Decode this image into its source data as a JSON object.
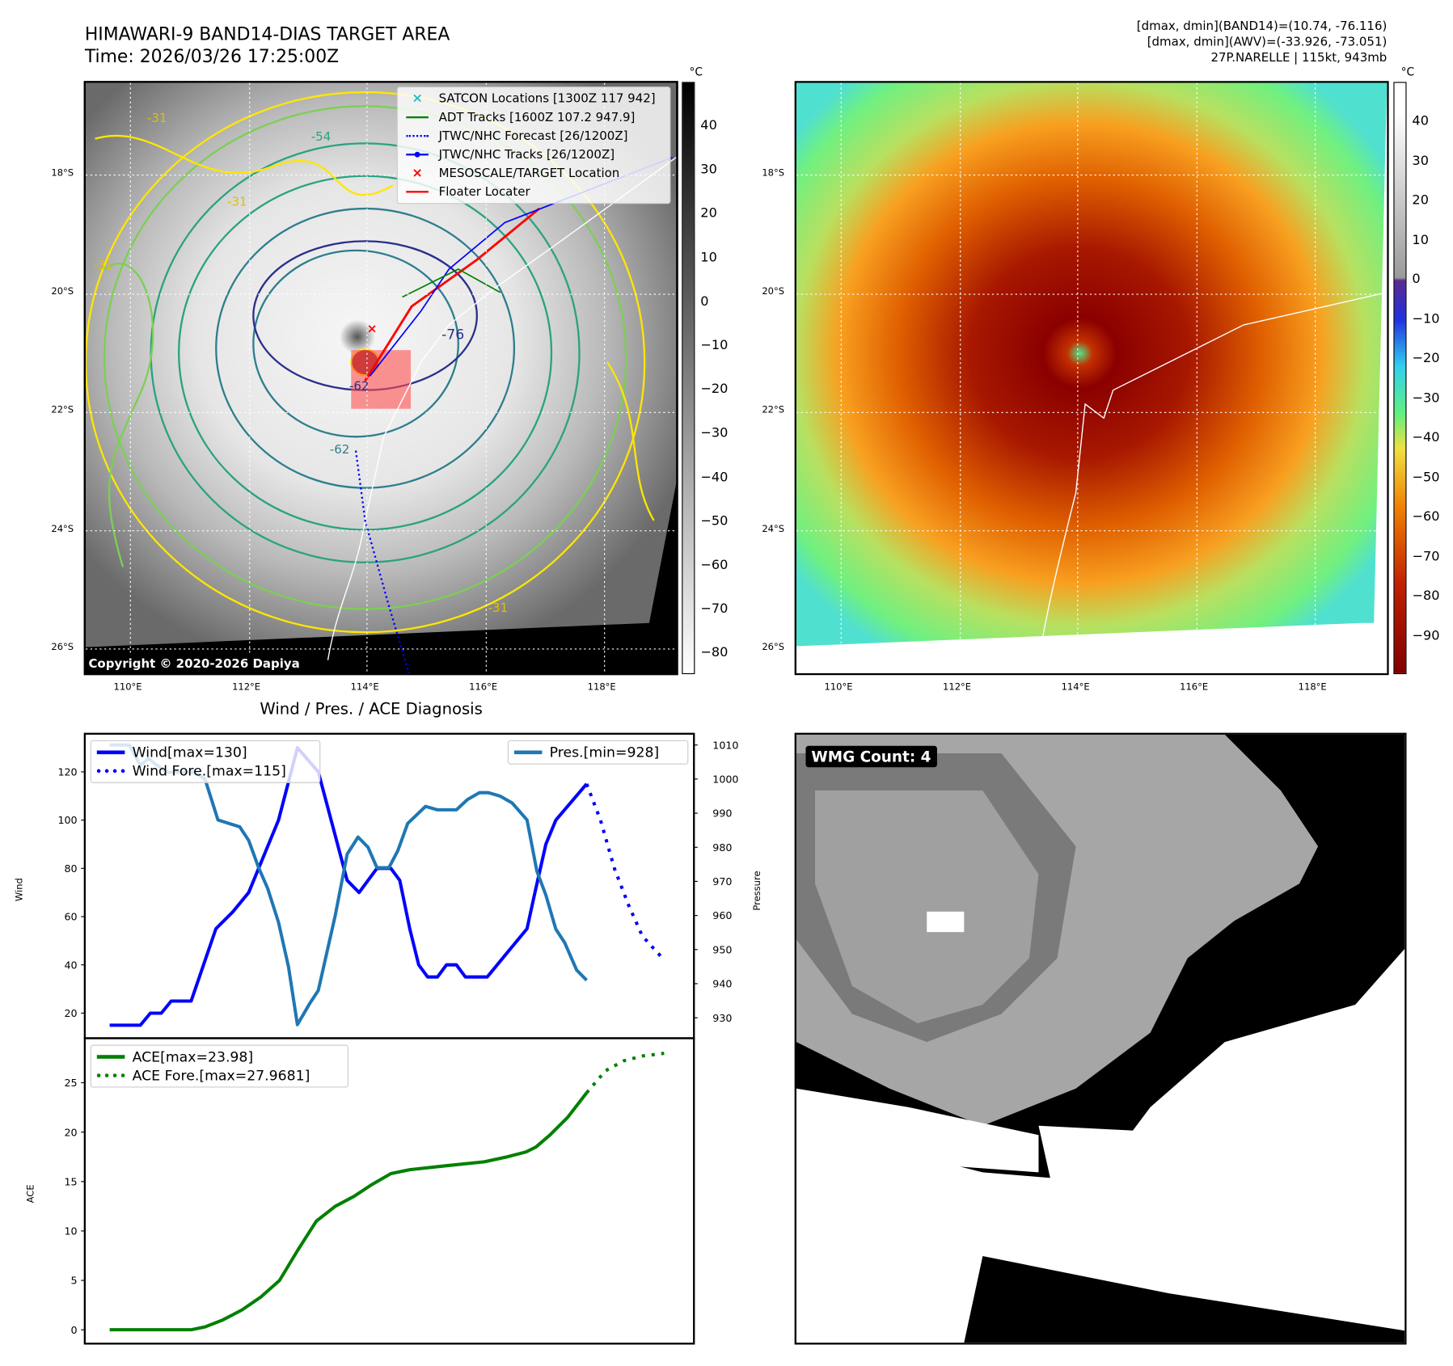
{
  "header": {
    "title": "HIMAWARI-9 BAND14-DIAS TARGET AREA",
    "time": "Time: 2026/03/26 17:25:00Z",
    "info_line1": "[dmax, dmin](BAND14)=(10.74, -76.116)",
    "info_line2": "[dmax, dmin](AWV)=(-33.926, -73.051)",
    "info_line3": "27P.NARELLE | 115kt, 943mb"
  },
  "maps": {
    "lat_labels": [
      "18°S",
      "20°S",
      "22°S",
      "24°S",
      "26°S"
    ],
    "lon_labels": [
      "110°E",
      "112°E",
      "114°E",
      "116°E",
      "118°E"
    ],
    "unit": "°C",
    "copyright": "Copyright © 2020-2026 Dapiya",
    "contour_labels": [
      "-31",
      "-54",
      "-31",
      "-31",
      "-76",
      "-62",
      "-62",
      "-31"
    ],
    "legend": [
      {
        "label": "SATCON Locations [1300Z 117 942]",
        "color": "#17becf",
        "icon": "x-marker-icon"
      },
      {
        "label": "ADT Tracks [1600Z 107.2 947.9]",
        "color": "#008000",
        "icon": "solid-line-icon"
      },
      {
        "label": "JTWC/NHC Forecast [26/1200Z]",
        "color": "#0000ff",
        "icon": "dotted-line-icon"
      },
      {
        "label": "JTWC/NHC Tracks [26/1200Z]",
        "color": "#0000ff",
        "icon": "line-dot-icon"
      },
      {
        "label": "MESOSCALE/TARGET Location",
        "color": "#ff0000",
        "icon": "x-marker-icon"
      },
      {
        "label": "Floater Locater",
        "color": "#ff0000",
        "icon": "solid-line-icon"
      }
    ],
    "left_colorbar_ticks": [
      "40",
      "30",
      "20",
      "10",
      "0",
      "−10",
      "−20",
      "−30",
      "−40",
      "−50",
      "−60",
      "−70",
      "−80"
    ],
    "right_colorbar_ticks": [
      "40",
      "30",
      "20",
      "10",
      "0",
      "−10",
      "−20",
      "−30",
      "−40",
      "−50",
      "−60",
      "−70",
      "−80",
      "−90"
    ]
  },
  "wmg": {
    "label": "WMG Count: 4"
  },
  "chart_data": [
    {
      "type": "line",
      "title": "Wind / Pres. / ACE Diagnosis",
      "ylabel": "Wind",
      "ylabel_right": "Pressure",
      "xlim": [
        -2.5,
        58.8
      ],
      "ylim": [
        9.6,
        135.8
      ],
      "ylim_right": [
        924,
        1013.3
      ],
      "yticks": [
        20,
        40,
        60,
        80,
        100,
        120
      ],
      "yticks_right": [
        930,
        940,
        950,
        960,
        970,
        980,
        990,
        1000,
        1010
      ],
      "series": [
        {
          "name": "Wind[max=130]",
          "axis": "left",
          "color": "#0000ff",
          "style": "solid",
          "x": [
            0,
            3.1,
            4.1,
            5.2,
            6.2,
            8.2,
            10.7,
            12.4,
            14,
            15.5,
            17,
            18.9,
            21,
            23.9,
            25.1,
            26.9,
            28.3,
            29.2,
            30.2,
            31.1,
            32,
            33,
            33.9,
            34.9,
            35.8,
            38,
            40,
            42,
            42.8,
            43.9,
            44.9,
            48
          ],
          "y": [
            15,
            15,
            20,
            20,
            25,
            25,
            55,
            62,
            70,
            85,
            100,
            130,
            120,
            75,
            70,
            80,
            80,
            75,
            55,
            40,
            35,
            35,
            40,
            40,
            35,
            35,
            45,
            55,
            70,
            90,
            100,
            115
          ]
        },
        {
          "name": "Wind Fore.[max=115]",
          "axis": "left",
          "color": "#0000ff",
          "style": "dotted",
          "x": [
            48,
            49.4,
            50.8,
            52.2,
            53.6,
            55.8
          ],
          "y": [
            115,
            100,
            80,
            65,
            52,
            42
          ]
        },
        {
          "name": "Pres.[min=928]",
          "axis": "right",
          "color": "#1f77b4",
          "style": "solid",
          "x": [
            0,
            2,
            3.1,
            3.9,
            4.8,
            5.8,
            8.6,
            9.6,
            10.9,
            13.1,
            14,
            15,
            15.9,
            17,
            18,
            18.9,
            20.1,
            21,
            22.7,
            23.9,
            25,
            26,
            26.9,
            28.1,
            29,
            30,
            31.8,
            33,
            34.9,
            36,
            37.2,
            38.1,
            39.3,
            40.5,
            42,
            43,
            43.9,
            44.9,
            45.8,
            47,
            48
          ],
          "y": [
            1010,
            1010,
            1004,
            1006,
            1004,
            1002,
            1002,
            1000,
            988,
            986,
            982,
            974,
            968,
            958,
            945,
            928,
            934,
            938,
            960,
            978,
            983,
            980,
            974,
            974,
            979,
            987,
            992,
            991,
            991,
            994,
            996,
            996,
            995,
            993,
            988,
            973,
            966,
            956,
            952,
            944,
            941
          ]
        }
      ]
    },
    {
      "type": "line",
      "ylabel": "ACE",
      "xlim": [
        -2.5,
        58.8
      ],
      "ylim": [
        -1.4,
        29.5
      ],
      "yticks": [
        0,
        5,
        10,
        15,
        20,
        25
      ],
      "series": [
        {
          "name": "ACE[max=23.98]",
          "color": "#008000",
          "style": "solid",
          "x": [
            0,
            8.2,
            9.6,
            11.4,
            13.3,
            15.2,
            17.1,
            18.9,
            20.8,
            22.7,
            24.6,
            26.4,
            28.3,
            30.2,
            33.9,
            37.7,
            40,
            41.9,
            42.9,
            44.3,
            46.1,
            48
          ],
          "y": [
            0,
            0,
            0.3,
            1,
            2,
            3.3,
            5,
            8,
            11,
            12.5,
            13.5,
            14.7,
            15.8,
            16.2,
            16.6,
            17,
            17.5,
            18,
            18.5,
            19.7,
            21.5,
            23.98
          ]
        },
        {
          "name": "ACE Fore.[max=27.9681]",
          "color": "#008000",
          "style": "dotted",
          "x": [
            48,
            49.9,
            51.7,
            53.6,
            55.8
          ],
          "y": [
            23.98,
            26.2,
            27.2,
            27.7,
            27.97
          ]
        }
      ]
    }
  ]
}
